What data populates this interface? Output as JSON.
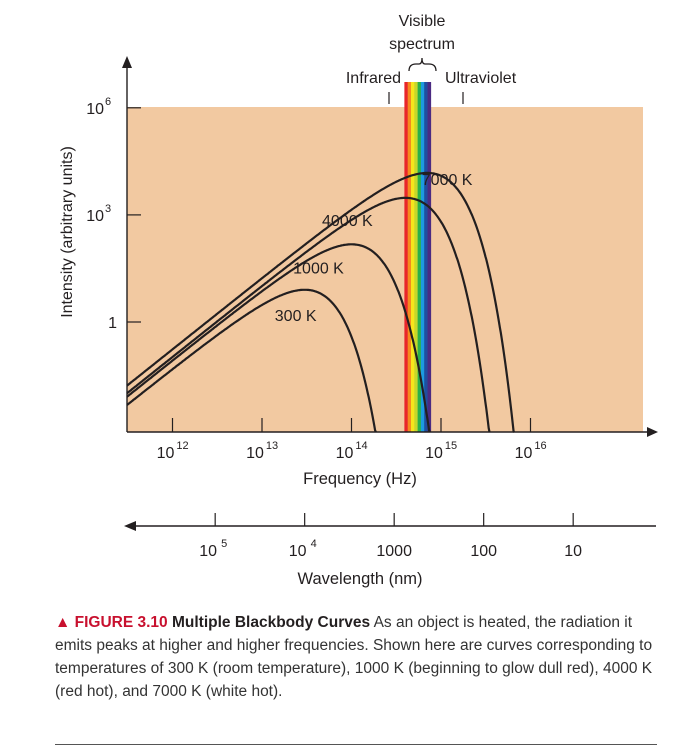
{
  "chart_data": {
    "type": "line",
    "xlabel": "Frequency (Hz)",
    "ylabel": "Intensity (arbitrary units)",
    "x_scale": "log",
    "y_scale": "log",
    "xlim": [
      300000000000,
      10000000000000000
    ],
    "ylim": [
      0.0001,
      1000000
    ],
    "x_ticks": [
      {
        "value": 1000000000000,
        "label": "10",
        "exp": "12"
      },
      {
        "value": 10000000000000,
        "label": "10",
        "exp": "13"
      },
      {
        "value": 100000000000000,
        "label": "10",
        "exp": "14"
      },
      {
        "value": 1000000000000000,
        "label": "10",
        "exp": "15"
      },
      {
        "value": 10000000000000000,
        "label": "10",
        "exp": "16"
      }
    ],
    "y_ticks": [
      {
        "value": 1,
        "label": "1",
        "exp": ""
      },
      {
        "value": 1000,
        "label": "10",
        "exp": "3"
      },
      {
        "value": 1000000,
        "label": "10",
        "exp": "6"
      }
    ],
    "series": [
      {
        "name": "300 K",
        "temperature": 300,
        "peak": [
          30000000000000,
          8
        ]
      },
      {
        "name": "1000 K",
        "temperature": 1000,
        "peak": [
          100000000000000,
          150
        ]
      },
      {
        "name": "4000 K",
        "temperature": 4000,
        "peak": [
          400000000000000,
          3000
        ]
      },
      {
        "name": "7000 K",
        "temperature": 7000,
        "peak": [
          700000000000000,
          15000
        ]
      }
    ],
    "visible_band": [
      400000000000000,
      750000000000000
    ],
    "annotations": {
      "visible": [
        "Visible",
        "spectrum"
      ],
      "infrared": "Infrared",
      "ultraviolet": "Ultraviolet"
    },
    "wavelength_axis": {
      "label": "Wavelength (nm)",
      "ticks": [
        {
          "value": 100000,
          "label": "10",
          "exp": "5"
        },
        {
          "value": 10000,
          "label": "10",
          "exp": "4"
        },
        {
          "value": 1000,
          "label": "1000",
          "exp": ""
        },
        {
          "value": 100,
          "label": "100",
          "exp": ""
        },
        {
          "value": 10,
          "label": "10",
          "exp": ""
        }
      ]
    },
    "colors": {
      "plot_background": "#f2c9a1",
      "curve": "#231f20",
      "spectrum": [
        "#4b2a82",
        "#1f4fa0",
        "#1c9be0",
        "#2bb04a",
        "#c7d72a",
        "#f7e51b",
        "#f58a1f",
        "#e8262b"
      ]
    }
  },
  "caption": {
    "figure_label": "▲ FIGURE 3.10",
    "title": "Multiple Blackbody Curves",
    "text": "As an object is heated, the radiation it emits peaks at higher and higher frequencies. Shown here are curves corresponding to temperatures of 300 K (room temperature), 1000 K (beginning to glow dull red), 4000 K (red hot), and 7000 K (white hot)."
  }
}
